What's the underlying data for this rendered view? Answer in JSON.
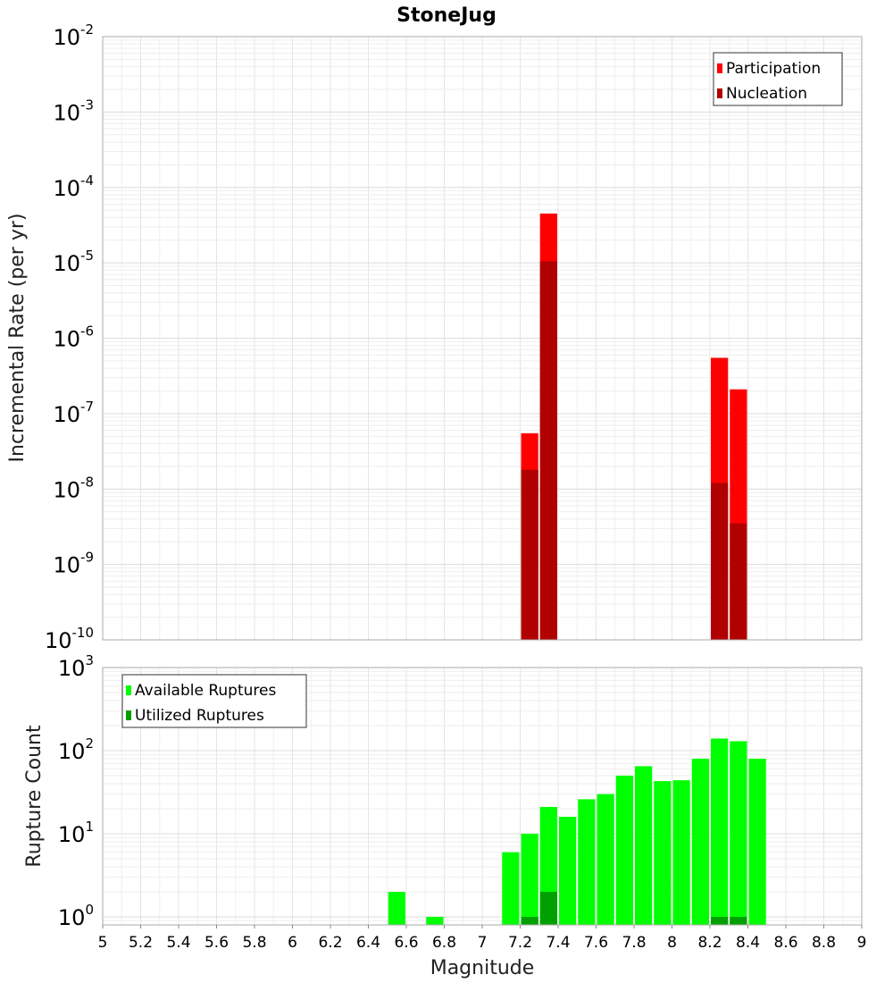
{
  "title": "StoneJug",
  "chart_data": [
    {
      "type": "bar",
      "name": "incremental-rate",
      "ylabel": "Incremental Rate (per yr)",
      "yscale": "log",
      "ylim": [
        1e-10,
        0.01
      ],
      "xlim": [
        5,
        9
      ],
      "y_tick_exponents": [
        -10,
        -9,
        -8,
        -7,
        -6,
        -5,
        -4,
        -3,
        -2
      ],
      "grid": true,
      "legend_position": "top-right",
      "bin_width": 0.1,
      "series": [
        {
          "name": "Participation",
          "color": "#ff0000",
          "points": [
            {
              "x": 7.25,
              "y": 5.5e-08
            },
            {
              "x": 7.35,
              "y": 4.5e-05
            },
            {
              "x": 8.25,
              "y": 5.5e-07
            },
            {
              "x": 8.35,
              "y": 2.1e-07
            }
          ]
        },
        {
          "name": "Nucleation",
          "color": "#b00000",
          "points": [
            {
              "x": 7.25,
              "y": 1.8e-08
            },
            {
              "x": 7.35,
              "y": 1.05e-05
            },
            {
              "x": 8.25,
              "y": 1.2e-08
            },
            {
              "x": 8.35,
              "y": 3.5e-09
            }
          ]
        }
      ]
    },
    {
      "type": "bar",
      "name": "rupture-count",
      "xlabel": "Magnitude",
      "ylabel": "Rupture Count",
      "yscale": "log",
      "ylim": [
        0.8,
        1000
      ],
      "xlim": [
        5,
        9
      ],
      "y_tick_exponents": [
        0,
        1,
        2,
        3
      ],
      "x_ticks": [
        "5",
        "5.2",
        "5.4",
        "5.6",
        "5.8",
        "6",
        "6.2",
        "6.4",
        "6.6",
        "6.8",
        "7",
        "7.2",
        "7.4",
        "7.6",
        "7.8",
        "8",
        "8.2",
        "8.4",
        "8.6",
        "8.8",
        "9"
      ],
      "grid": true,
      "legend_position": "top-left",
      "bin_width": 0.1,
      "series": [
        {
          "name": "Available Ruptures",
          "color": "#00ff00",
          "points": [
            {
              "x": 6.55,
              "y": 2
            },
            {
              "x": 6.75,
              "y": 1
            },
            {
              "x": 7.15,
              "y": 6
            },
            {
              "x": 7.25,
              "y": 10
            },
            {
              "x": 7.35,
              "y": 21
            },
            {
              "x": 7.45,
              "y": 16
            },
            {
              "x": 7.55,
              "y": 26
            },
            {
              "x": 7.65,
              "y": 30
            },
            {
              "x": 7.75,
              "y": 50
            },
            {
              "x": 7.85,
              "y": 65
            },
            {
              "x": 7.95,
              "y": 43
            },
            {
              "x": 8.05,
              "y": 44
            },
            {
              "x": 8.15,
              "y": 80
            },
            {
              "x": 8.25,
              "y": 140
            },
            {
              "x": 8.35,
              "y": 130
            },
            {
              "x": 8.45,
              "y": 80
            }
          ]
        },
        {
          "name": "Utilized Ruptures",
          "color": "#00a000",
          "points": [
            {
              "x": 7.25,
              "y": 1
            },
            {
              "x": 7.35,
              "y": 2
            },
            {
              "x": 8.25,
              "y": 1
            },
            {
              "x": 8.35,
              "y": 1
            }
          ]
        }
      ]
    }
  ]
}
